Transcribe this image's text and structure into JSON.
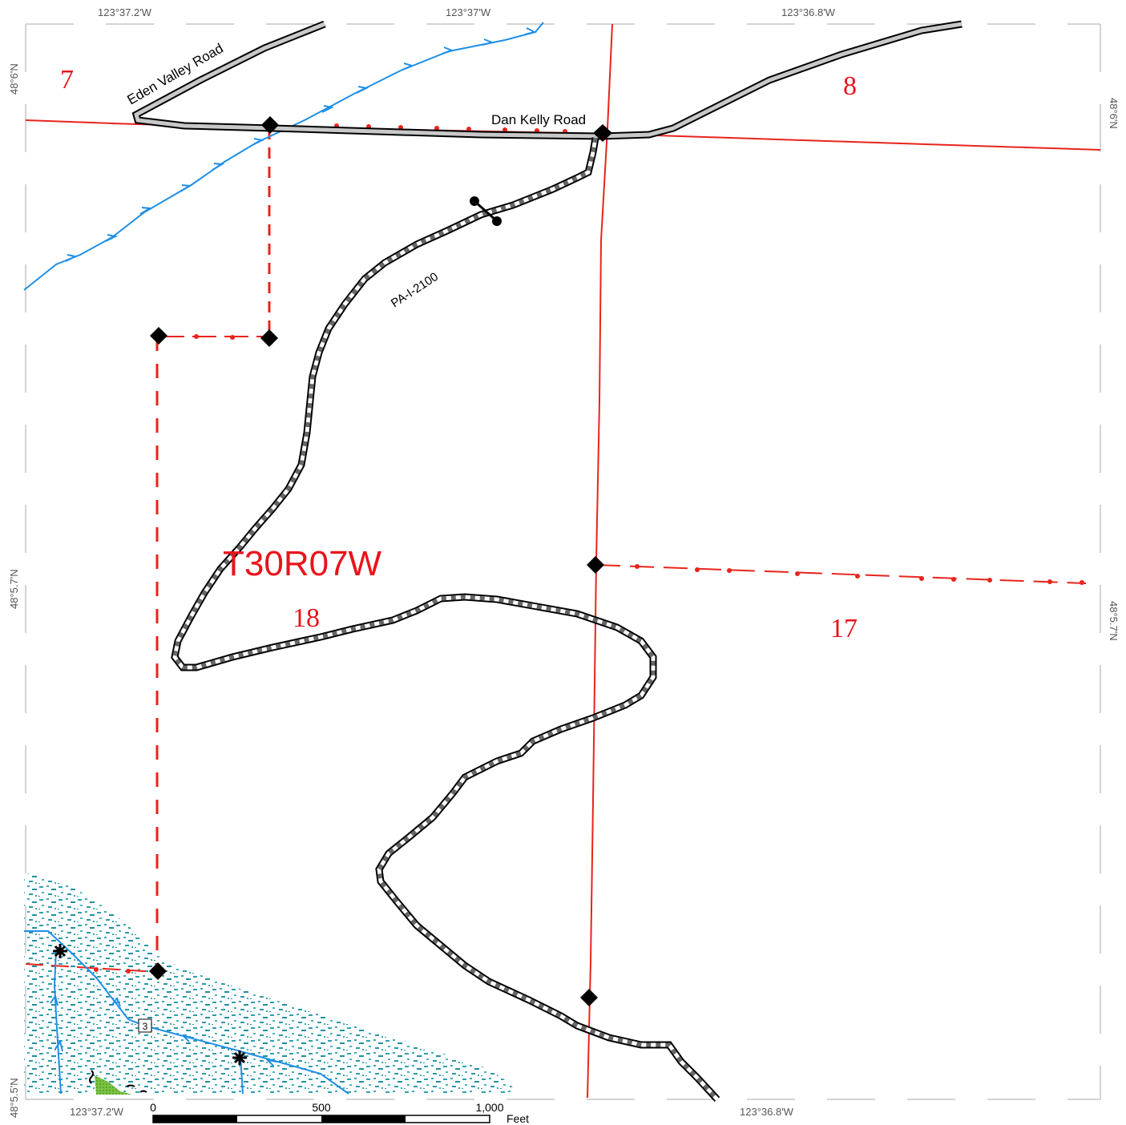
{
  "map": {
    "roads": {
      "eden_valley": "Eden Valley Road",
      "dan_kelly": "Dan Kelly Road",
      "forest_road": "PA-I-2100"
    },
    "township": "T30R07W",
    "sections": {
      "s7": "7",
      "s8": "8",
      "s17": "17",
      "s18": "18"
    },
    "route_marker": "3",
    "graticule": {
      "top_left": "123°37.2'W",
      "top_mid": "123°37'W",
      "top_right": "123°36.8'W",
      "bottom_left": "123°37.2'W",
      "bottom_right": "123°36.8'W",
      "left_top": "48°6'N",
      "left_mid": "48°5.7'N",
      "left_bottom": "48°5.5'N",
      "right_top": "48°6'N",
      "right_mid": "48°5.7'N"
    },
    "scale_bar": {
      "t0": "0",
      "t500": "500",
      "t1000": "1,000",
      "unit": "Feet"
    },
    "colors": {
      "boundary": "#e8241c",
      "stream": "#1f8fe6",
      "road_fill": "#c8c8c8",
      "township_text": "#e8141c",
      "vegetation": "#2aa0a8"
    }
  }
}
